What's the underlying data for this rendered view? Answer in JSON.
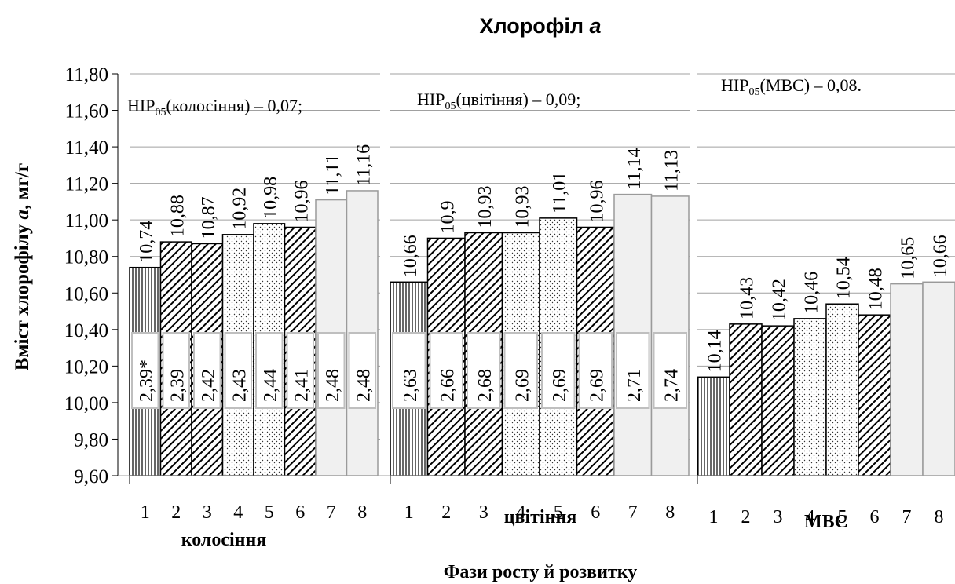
{
  "chart_data": {
    "type": "bar",
    "title": "Хлорофіл а",
    "title_main": "Хлорофіл ",
    "title_italic": "а",
    "ylabel": "Вміст хлорофілу а, мг/г",
    "ylabel_main": "Вміст хлорофілу ",
    "ylabel_italic": "а",
    "ylabel_rest": ", мг/г",
    "xlabel": "Фази росту й розвитку",
    "ylim": [
      9.6,
      11.8
    ],
    "yticks": [
      "9,60",
      "9,80",
      "10,00",
      "10,20",
      "10,40",
      "10,60",
      "10,80",
      "11,00",
      "11,20",
      "11,40",
      "11,60",
      "11,80"
    ],
    "grid": true,
    "categories": [
      "1",
      "2",
      "3",
      "4",
      "5",
      "6",
      "7",
      "8"
    ],
    "panels": [
      {
        "name": "колосіння",
        "nir_label": "НІР05(колосіння) – 0,07;",
        "nir_main": "НІР",
        "nir_sub": "05",
        "nir_rest": "(колосіння) – 0,07;",
        "values": [
          10.74,
          10.88,
          10.87,
          10.92,
          10.98,
          10.96,
          11.11,
          11.16
        ],
        "value_labels": [
          "10,74",
          "10,88",
          "10,87",
          "10,92",
          "10,98",
          "10,96",
          "11,11",
          "11,16"
        ],
        "ratio_labels": [
          "2,39*",
          "2,39",
          "2,42",
          "2,43",
          "2,44",
          "2,41",
          "2,48",
          "2,48"
        ]
      },
      {
        "name": "цвітіння",
        "nir_label": "НІР05(цвітіння) – 0,09;",
        "nir_main": "НІР",
        "nir_sub": "05",
        "nir_rest": "(цвітіння) – 0,09;",
        "values": [
          10.66,
          10.9,
          10.93,
          10.93,
          11.01,
          10.96,
          11.14,
          11.13
        ],
        "value_labels": [
          "10,66",
          "10,9",
          "10,93",
          "10,93",
          "11,01",
          "10,96",
          "11,14",
          "11,13"
        ],
        "ratio_labels": [
          "2,63",
          "2,66",
          "2,68",
          "2,69",
          "2,69",
          "2,69",
          "2,71",
          "2,74"
        ]
      },
      {
        "name": "МВС",
        "nir_label": "НІР05(МВС) – 0,08.",
        "nir_main": "НІР",
        "nir_sub": "05",
        "nir_rest": "(МВС) – 0,08.",
        "values": [
          10.14,
          10.43,
          10.42,
          10.46,
          10.54,
          10.48,
          10.65,
          10.66
        ],
        "value_labels": [
          "10,14",
          "10,43",
          "10,42",
          "10,46",
          "10,54",
          "10,48",
          "10,65",
          "10,66"
        ],
        "ratio_labels": []
      }
    ],
    "bar_patterns": [
      "vertical-lines",
      "diagonal-hatch",
      "diagonal-hatch",
      "dots",
      "dots",
      "diagonal-hatch",
      "light-gray",
      "light-gray"
    ],
    "colors": {
      "bar_border": "#000000",
      "light_fill": "#f0f0f0",
      "grid": "#a0a0a0",
      "ratio_box_border": "#bfbfbf"
    }
  }
}
